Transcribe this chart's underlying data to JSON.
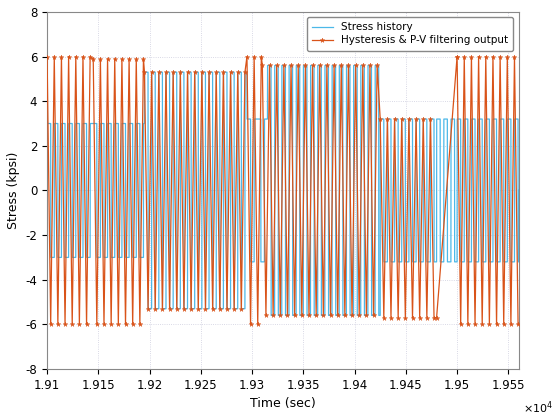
{
  "xlabel": "Time (sec)",
  "ylabel": "Stress (kpsi)",
  "xlim": [
    191000,
    195600
  ],
  "ylim": [
    -8,
    8
  ],
  "xticks": [
    191000,
    191500,
    192000,
    192500,
    193000,
    193500,
    194000,
    194500,
    195000,
    195500
  ],
  "xtick_labels": [
    "1.91",
    "1.915",
    "1.92",
    "1.925",
    "1.93",
    "1.935",
    "1.94",
    "1.945",
    "1.95",
    "1.955"
  ],
  "yticks": [
    -8,
    -6,
    -4,
    -2,
    0,
    2,
    4,
    6,
    8
  ],
  "stress_color": "#4cb8e8",
  "filter_color": "#d95319",
  "bg_color": "#ffffff",
  "grid_color": "#ccccdd",
  "legend_labels": [
    "Stress history",
    "Hysteresis & P-V filtering output"
  ],
  "blue_segments": [
    [
      191000,
      191450,
      3.0,
      -3.0,
      35
    ],
    [
      191450,
      191950,
      3.0,
      -3.0,
      35
    ],
    [
      191950,
      192950,
      5.3,
      -5.3,
      35
    ],
    [
      192950,
      193050,
      3.2,
      -3.2,
      35
    ],
    [
      193050,
      193150,
      3.2,
      -3.2,
      35
    ],
    [
      193150,
      194250,
      5.6,
      -5.6,
      35
    ],
    [
      194250,
      194800,
      3.2,
      -3.2,
      35
    ],
    [
      194800,
      195000,
      3.2,
      -3.2,
      35
    ],
    [
      195000,
      195600,
      3.2,
      -3.2,
      35
    ]
  ],
  "orange_segments": [
    [
      191000,
      191450,
      6.0,
      -6.0,
      35
    ],
    [
      191450,
      191950,
      5.9,
      -6.0,
      35
    ],
    [
      191950,
      192950,
      5.3,
      -5.3,
      35
    ],
    [
      192950,
      193100,
      6.0,
      -6.0,
      35
    ],
    [
      193100,
      194250,
      5.6,
      -5.6,
      35
    ],
    [
      194250,
      194800,
      3.2,
      -5.7,
      35
    ],
    [
      195000,
      195600,
      6.0,
      -6.0,
      35
    ]
  ],
  "orange_transition": [
    194800,
    -5.7,
    195000,
    6.0
  ]
}
